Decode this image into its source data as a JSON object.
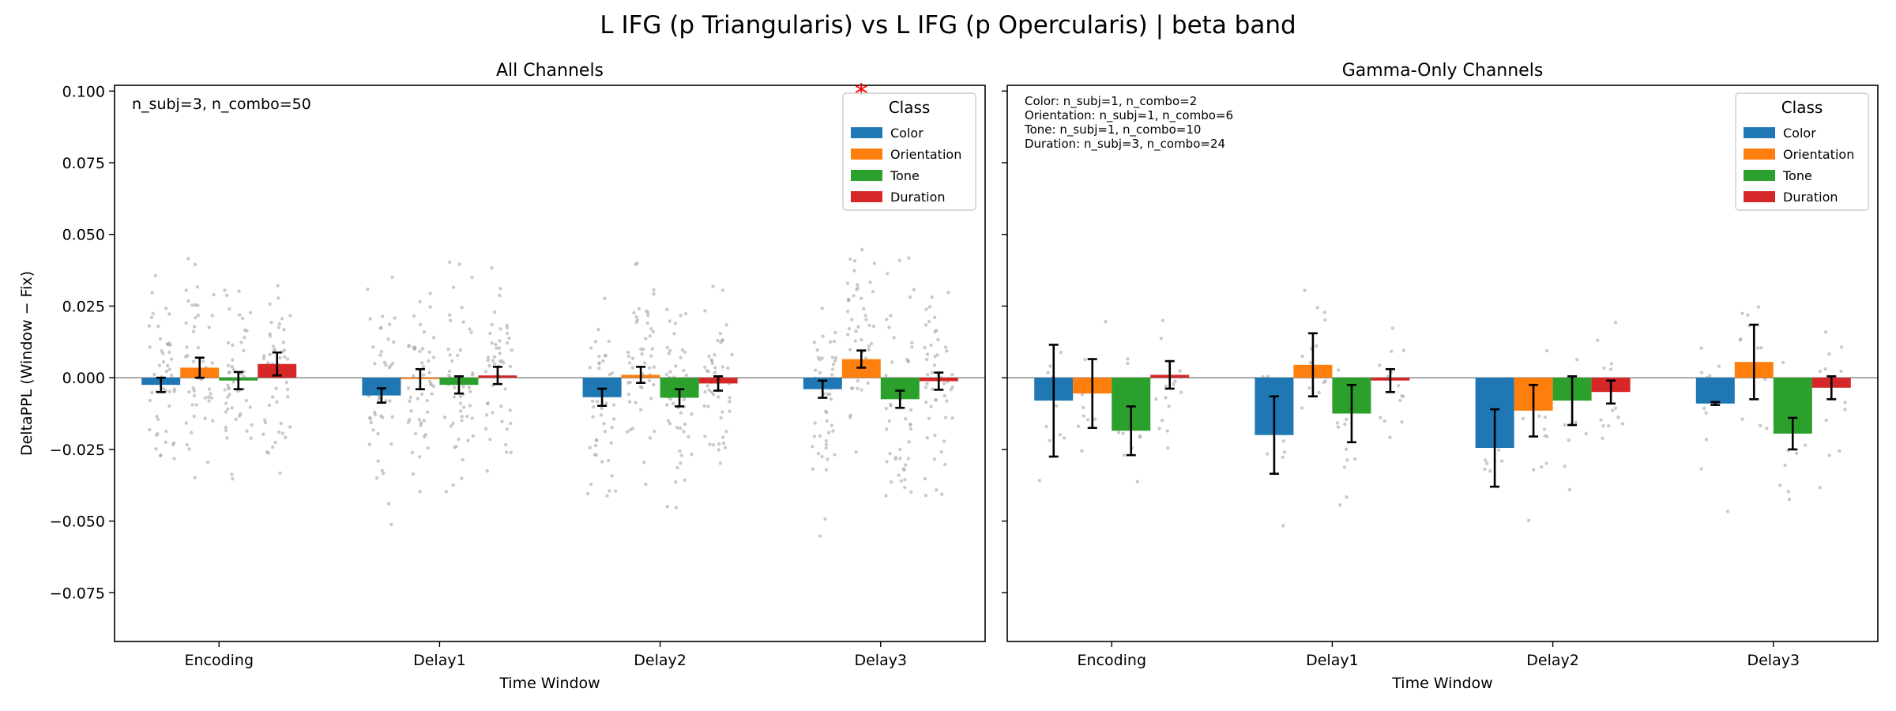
{
  "figure": {
    "title": "L IFG (p Triangularis) vs L IFG (p Opercularis)  |  beta band"
  },
  "chart_data": [
    {
      "type": "bar",
      "title": "All Channels",
      "xlabel": "Time Window",
      "ylabel": "DeltaPPL (Window − Fix)",
      "ylim": [
        -0.092,
        0.102
      ],
      "yticks": [
        "0.100",
        "0.075",
        "0.050",
        "0.025",
        "0.000",
        "−0.025",
        "−0.050",
        "−0.075"
      ],
      "ytick_values": [
        0.1,
        0.075,
        0.05,
        0.025,
        0.0,
        -0.025,
        -0.05,
        -0.075
      ],
      "categories": [
        "Encoding",
        "Delay1",
        "Delay2",
        "Delay3"
      ],
      "series": [
        {
          "name": "Color",
          "values": [
            -0.0025,
            -0.0062,
            -0.0068,
            -0.004
          ],
          "errors": [
            0.0025,
            0.0025,
            0.003,
            0.003
          ]
        },
        {
          "name": "Orientation",
          "values": [
            0.0035,
            -0.0005,
            0.001,
            0.0065
          ],
          "errors": [
            0.0035,
            0.0035,
            0.0028,
            0.003
          ]
        },
        {
          "name": "Tone",
          "values": [
            -0.001,
            -0.0025,
            -0.007,
            -0.0075
          ],
          "errors": [
            0.003,
            0.003,
            0.003,
            0.003
          ]
        },
        {
          "name": "Duration",
          "values": [
            0.0048,
            0.0008,
            -0.002,
            -0.0012
          ],
          "errors": [
            0.004,
            0.003,
            0.0025,
            0.003
          ]
        }
      ],
      "annotation": "n_subj=3, n_combo=50",
      "significance": {
        "marker": "*",
        "category": "Delay3",
        "series": "Orientation",
        "color": "#ff0000"
      },
      "legend": {
        "title": "Class",
        "placement": "top-right"
      },
      "scatter_points_per_group": 50,
      "scatter_spread": 0.03
    },
    {
      "type": "bar",
      "title": "Gamma-Only Channels",
      "xlabel": "Time Window",
      "ylim": [
        -0.092,
        0.102
      ],
      "categories": [
        "Encoding",
        "Delay1",
        "Delay2",
        "Delay3"
      ],
      "series": [
        {
          "name": "Color",
          "values": [
            -0.008,
            -0.02,
            -0.0245,
            -0.009
          ],
          "errors": [
            0.0195,
            0.0135,
            0.0135,
            0.0005
          ]
        },
        {
          "name": "Orientation",
          "values": [
            -0.0055,
            0.0045,
            -0.0115,
            0.0055
          ],
          "errors": [
            0.012,
            0.011,
            0.009,
            0.013
          ]
        },
        {
          "name": "Tone",
          "values": [
            -0.0185,
            -0.0125,
            -0.008,
            -0.0195
          ],
          "errors": [
            0.0085,
            0.01,
            0.0085,
            0.0055
          ]
        },
        {
          "name": "Duration",
          "values": [
            0.001,
            -0.001,
            -0.005,
            -0.0035
          ],
          "errors": [
            0.0048,
            0.004,
            0.004,
            0.004
          ]
        }
      ],
      "annotation_lines": [
        "Color: n_subj=1, n_combo=2",
        "Orientation: n_subj=1, n_combo=6",
        "Tone: n_subj=1, n_combo=10",
        "Duration: n_subj=3, n_combo=24"
      ],
      "legend": {
        "title": "Class",
        "placement": "top-right"
      },
      "scatter_points_per_group": 14,
      "scatter_spread": 0.022
    }
  ],
  "colors": {
    "Color": "#1f77b4",
    "Orientation": "#ff7f0e",
    "Tone": "#2ca02c",
    "Duration": "#d62728",
    "scatter": "#a6a6a6",
    "zeroline": "#808080"
  }
}
